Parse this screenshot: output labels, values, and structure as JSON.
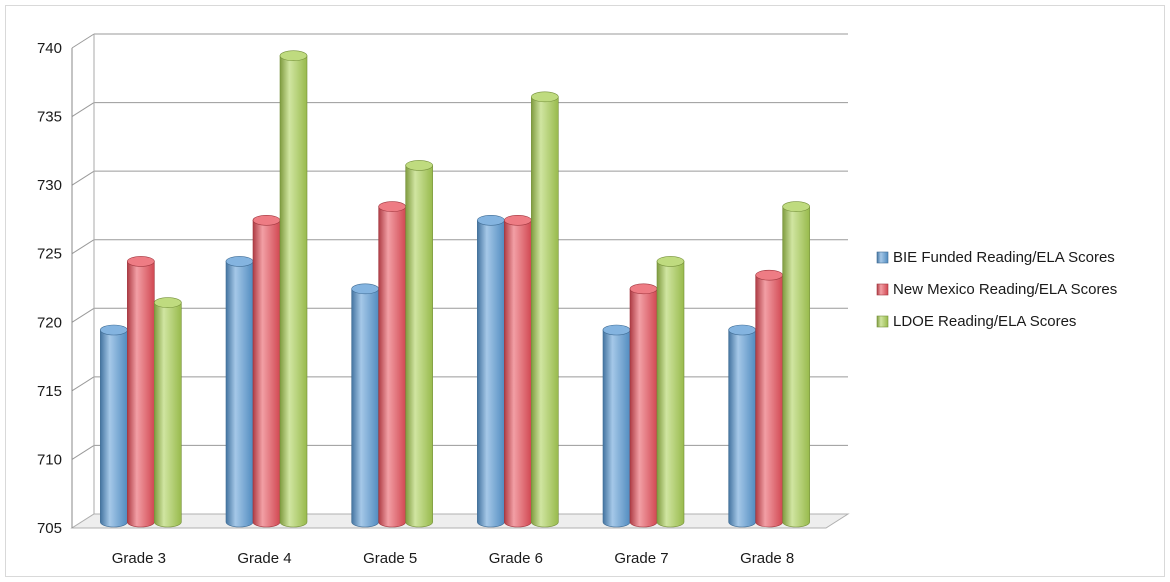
{
  "chart_data": {
    "type": "bar",
    "categories": [
      "Grade 3",
      "Grade 4",
      "Grade 5",
      "Grade 6",
      "Grade 7",
      "Grade 8"
    ],
    "series": [
      {
        "name": "BIE Funded Reading/ELA Scores",
        "values": [
          719,
          724,
          722,
          727,
          719,
          719
        ],
        "color": "#5b9bd5"
      },
      {
        "name": "New Mexico Reading/ELA Scores",
        "values": [
          724,
          727,
          728,
          727,
          722,
          723
        ],
        "color": "#e8505b"
      },
      {
        "name": "LDOE Reading/ELA Scores",
        "values": [
          721,
          739,
          731,
          736,
          724,
          728
        ],
        "color": "#a9cf54"
      }
    ],
    "ylim": [
      705,
      740
    ],
    "yticks": [
      "705",
      "710",
      "715",
      "720",
      "725",
      "730",
      "735",
      "740"
    ],
    "grid": true,
    "legend": "right",
    "style": "3d-cylinder"
  }
}
